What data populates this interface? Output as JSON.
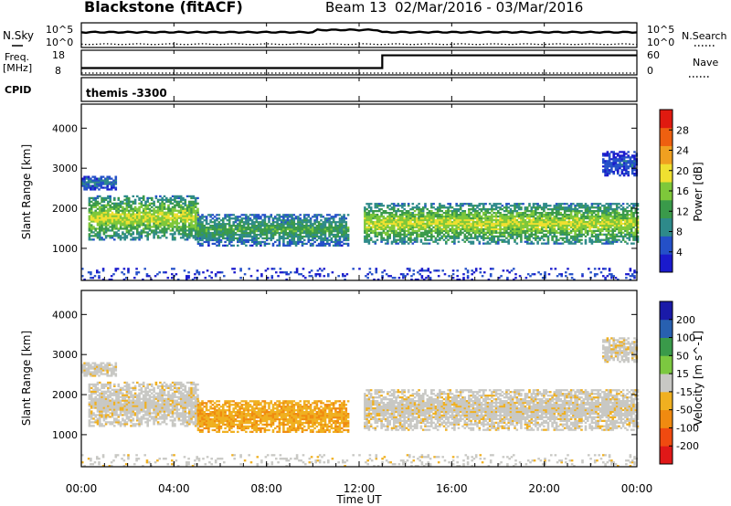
{
  "chart_data": {
    "type": "heatmap",
    "title": {
      "radar": "Blackstone (fitACF)",
      "beam": "Beam 13",
      "dates": "02/Mar/2016 - 03/Mar/2016"
    },
    "x_axis": {
      "label": "Time UT",
      "range_hours": [
        0,
        24
      ],
      "ticks": [
        {
          "hour": 0,
          "label": "00:00"
        },
        {
          "hour": 4,
          "label": "04:00"
        },
        {
          "hour": 8,
          "label": "08:00"
        },
        {
          "hour": 12,
          "label": "12:00"
        },
        {
          "hour": 16,
          "label": "16:00"
        },
        {
          "hour": 20,
          "label": "20:00"
        },
        {
          "hour": 24,
          "label": "00:00"
        }
      ]
    },
    "noise_panel": {
      "left_label": "N.Sky",
      "right_label": "N.Search",
      "left_ticks": [
        "10^5",
        "10^0"
      ],
      "right_ticks": [
        "10^5",
        "10^0"
      ],
      "sky_level": 0.62,
      "search_level": 0.08
    },
    "freq_panel": {
      "left_label": "Freq.",
      "left_unit": "[MHz]",
      "right_label": "Nave",
      "left_ticks": [
        18,
        8
      ],
      "right_ticks": [
        60,
        0
      ],
      "freq_mhz_before": 10.5,
      "freq_mhz_after": 16.3,
      "step_hour": 13.0
    },
    "cpid_panel": {
      "label": "CPID",
      "value": "themis -3300"
    },
    "ylabel": "Slant Range [km]",
    "y_range_km": [
      200,
      4600
    ],
    "y_ticks": [
      1000,
      2000,
      3000,
      4000
    ],
    "power_panel": {
      "colorbar_label": "Power [dB]",
      "colorbar_range": [
        0,
        32
      ],
      "colorbar_ticks": [
        4,
        8,
        12,
        16,
        20,
        24,
        28
      ],
      "colors": [
        "#1a1acc",
        "#2450c8",
        "#2e8a8a",
        "#3a9a4a",
        "#7ec83a",
        "#f0e030",
        "#f0a020",
        "#ee6010",
        "#e01a10"
      ]
    },
    "velocity_panel": {
      "colorbar_label": "Velocity [m s^-1]",
      "colorbar_range": [
        -250,
        250
      ],
      "colorbar_ticks": [
        200,
        100,
        50,
        15,
        -15,
        -50,
        -100,
        -200
      ],
      "colors": [
        "#e01818",
        "#f04a10",
        "#f08a10",
        "#f0b020",
        "#c8c8c4",
        "#7cc840",
        "#3a9a4a",
        "#2860b0",
        "#1a1aa8"
      ]
    },
    "echo_regions": [
      {
        "name": "main",
        "hours": [
          0.3,
          5.0
        ],
        "range_km": [
          1200,
          2300
        ],
        "power_db": 20,
        "velocity": -5
      },
      {
        "name": "far",
        "hours": [
          0.0,
          1.5
        ],
        "range_km": [
          2450,
          2800
        ],
        "power_db": 8,
        "velocity": -5
      },
      {
        "name": "morning",
        "hours": [
          5.0,
          11.5
        ],
        "range_km": [
          1050,
          1850
        ],
        "power_db": 14,
        "velocity": -45
      },
      {
        "name": "afternoon",
        "hours": [
          12.2,
          24.0
        ],
        "range_km": [
          1100,
          2100
        ],
        "power_db": 20,
        "velocity": -5
      },
      {
        "name": "evening-far",
        "hours": [
          22.5,
          24.0
        ],
        "range_km": [
          2800,
          3400
        ],
        "power_db": 6,
        "velocity": -5
      },
      {
        "name": "ground",
        "hours": [
          0.0,
          24.0
        ],
        "range_km": [
          200,
          500
        ],
        "power_db": 5,
        "velocity": -5
      }
    ]
  }
}
